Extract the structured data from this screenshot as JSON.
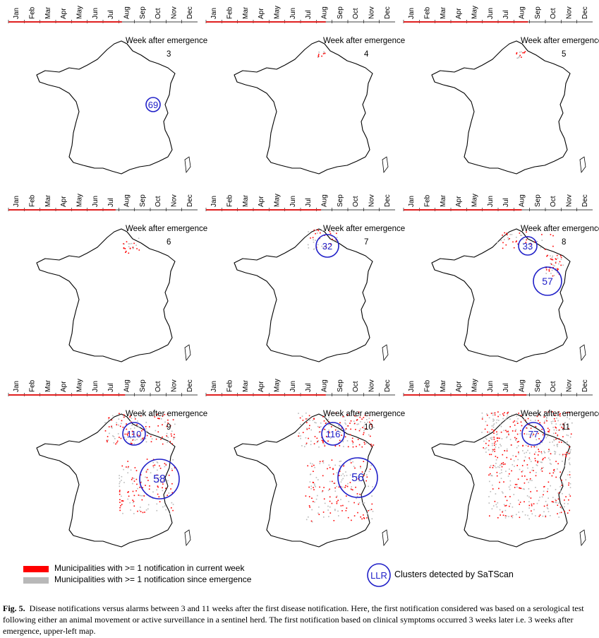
{
  "months": [
    "Jan",
    "Feb",
    "Mar",
    "Apr",
    "May",
    "Jun",
    "Jul",
    "Aug",
    "Sep",
    "Oct",
    "Nov",
    "Dec"
  ],
  "panel_title": "Week after emergence",
  "colors": {
    "current_week": "#ff0000",
    "since_emergence": "#b8b8b8",
    "cluster": "#2020c8",
    "timeline_active": "#e02020",
    "map_outline": "#000000"
  },
  "panels": [
    {
      "week": "3",
      "timeline_end_month": 7.2,
      "clusters": [
        {
          "label": "69",
          "size": "small"
        }
      ]
    },
    {
      "week": "4",
      "timeline_end_month": 7.6,
      "clusters": []
    },
    {
      "week": "5",
      "timeline_end_month": 7.9,
      "clusters": []
    },
    {
      "week": "6",
      "timeline_end_month": 6.8,
      "clusters": []
    },
    {
      "week": "7",
      "timeline_end_month": 7.3,
      "clusters": [
        {
          "label": "32",
          "size": "medium"
        }
      ]
    },
    {
      "week": "8",
      "timeline_end_month": 7.5,
      "clusters": [
        {
          "label": "33",
          "size": "small"
        },
        {
          "label": "57",
          "size": "large"
        }
      ]
    },
    {
      "week": "9",
      "timeline_end_month": 7.4,
      "clusters": [
        {
          "label": "110",
          "size": "medium"
        },
        {
          "label": "58",
          "size": "xlarge"
        }
      ]
    },
    {
      "week": "10",
      "timeline_end_month": 7.6,
      "clusters": [
        {
          "label": "116",
          "size": "medium"
        },
        {
          "label": "56",
          "size": "xlarge"
        }
      ]
    },
    {
      "week": "11",
      "timeline_end_month": 7.8,
      "clusters": [
        {
          "label": "77",
          "size": "medium"
        }
      ]
    }
  ],
  "legend": {
    "current_week": "Municipalities with >= 1 notification in current week",
    "since_emergence": "Municipalities with >= 1 notification since emergence",
    "cluster_symbol": "LLR",
    "cluster_text": "Clusters detected by SaTScan"
  },
  "caption": {
    "label": "Fig. 5.",
    "text": "Disease notifications versus alarms between 3 and 11 weeks after the first disease notification. Here, the first notification considered was based on a serological test following either an animal movement or active surveillance in a sentinel herd. The first notification based on clinical symptoms occurred 3 weeks later i.e. 3 weeks after emergence, upper-left map."
  }
}
